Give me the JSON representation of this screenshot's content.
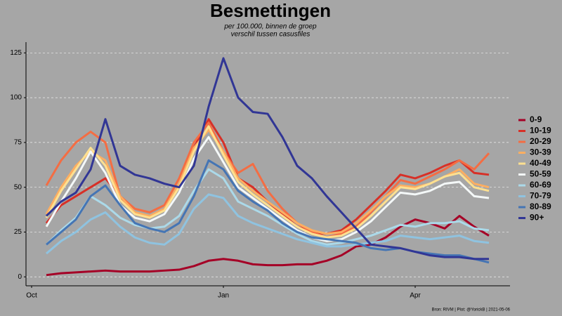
{
  "chart_data": {
    "type": "line",
    "title": "Besmettingen",
    "subtitle": [
      "per 100.000, binnen de groep",
      "verschil tussen casusfiles"
    ],
    "caption": "Bron: RIVM | Plot: @YorickB  |  2021-05-06",
    "categories": [
      "Oct",
      null,
      null,
      null,
      null,
      null,
      null,
      null,
      null,
      null,
      null,
      null,
      null,
      "Jan",
      null,
      null,
      null,
      null,
      null,
      null,
      null,
      null,
      null,
      null,
      null,
      null,
      "Apr",
      null,
      null,
      null,
      null,
      null
    ],
    "ylim": [
      -5,
      131
    ],
    "yticks": [
      0,
      25,
      50,
      75,
      100,
      125
    ],
    "grid": true,
    "legend": "right",
    "series": [
      {
        "name": "0-9",
        "color": "#a50026",
        "values": [
          null,
          1,
          2,
          2.5,
          3,
          3.5,
          3,
          3,
          3,
          3.5,
          4,
          6,
          9,
          10,
          9,
          7,
          6.5,
          6.5,
          7,
          7,
          9,
          12,
          17,
          18,
          22,
          28,
          32,
          30,
          27,
          34,
          28,
          23
        ]
      },
      {
        "name": "10-19",
        "color": "#d73027",
        "values": [
          null,
          30,
          40,
          45,
          50,
          55,
          45,
          35,
          33,
          38,
          50,
          72,
          88,
          75,
          55,
          50,
          42,
          35,
          28,
          25,
          24,
          26,
          32,
          40,
          48,
          57,
          55,
          58,
          62,
          65,
          58,
          57
        ]
      },
      {
        "name": "20-29",
        "color": "#f46d43",
        "values": [
          null,
          51,
          65,
          75,
          81,
          75,
          45,
          38,
          36,
          40,
          55,
          75,
          86,
          70,
          58,
          63,
          48,
          38,
          30,
          25,
          22,
          24,
          28,
          36,
          45,
          54,
          52,
          56,
          60,
          65,
          60,
          69
        ]
      },
      {
        "name": "30-39",
        "color": "#fdae61",
        "values": [
          null,
          35,
          50,
          62,
          70,
          65,
          45,
          36,
          34,
          38,
          52,
          72,
          82,
          70,
          55,
          48,
          42,
          36,
          30,
          26,
          24,
          25,
          30,
          37,
          45,
          51,
          50,
          52,
          56,
          60,
          52,
          50
        ]
      },
      {
        "name": "40-49",
        "color": "#fee090",
        "values": [
          null,
          33,
          48,
          60,
          72,
          62,
          43,
          35,
          33,
          37,
          50,
          70,
          84,
          68,
          53,
          46,
          40,
          34,
          28,
          24,
          22,
          23,
          27,
          34,
          42,
          50,
          49,
          52,
          56,
          58,
          50,
          48
        ]
      },
      {
        "name": "50-59",
        "color": "#f4f8f8",
        "values": [
          null,
          28,
          42,
          55,
          70,
          58,
          40,
          33,
          31,
          35,
          47,
          66,
          78,
          64,
          50,
          44,
          38,
          32,
          26,
          22,
          20,
          21,
          25,
          31,
          39,
          47,
          46,
          48,
          52,
          53,
          45,
          44
        ]
      },
      {
        "name": "60-69",
        "color": "#abd9e9",
        "values": [
          null,
          18,
          26,
          33,
          45,
          40,
          33,
          29,
          27,
          28,
          34,
          48,
          60,
          55,
          42,
          38,
          34,
          29,
          24,
          20,
          18,
          19,
          21,
          23,
          26,
          29,
          28,
          30,
          30,
          31,
          27,
          26
        ]
      },
      {
        "name": "70-79",
        "color": "#8fc3e0",
        "values": [
          null,
          13,
          20,
          25,
          32,
          36,
          28,
          22,
          19,
          18,
          24,
          38,
          46,
          44,
          34,
          30,
          27,
          24,
          21,
          19,
          17,
          17,
          18,
          19,
          20,
          23,
          22,
          21,
          22,
          23,
          20,
          19
        ]
      },
      {
        "name": "80-89",
        "color": "#4575b4",
        "values": [
          null,
          18,
          25,
          32,
          45,
          51,
          40,
          30,
          27,
          25,
          30,
          45,
          65,
          60,
          48,
          42,
          37,
          30,
          25,
          22,
          21,
          20,
          19,
          16,
          15,
          16,
          14,
          13,
          12,
          12,
          10,
          8
        ]
      },
      {
        "name": "90+",
        "color": "#313695",
        "values": [
          null,
          34,
          42,
          47,
          60,
          88,
          62,
          57,
          55,
          52,
          50,
          62,
          95,
          122,
          100,
          92,
          91,
          78,
          62,
          55,
          45,
          36,
          27,
          18,
          17,
          16,
          14,
          12,
          11,
          11,
          10,
          10
        ]
      }
    ]
  }
}
